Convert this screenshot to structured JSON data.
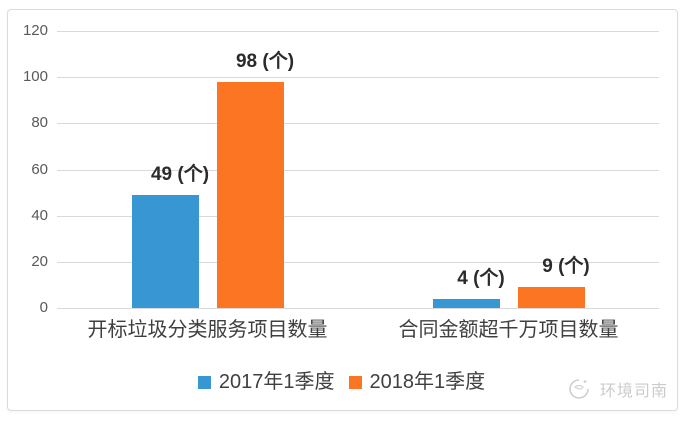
{
  "chart_data": {
    "type": "bar",
    "title": "",
    "xlabel": "",
    "ylabel": "",
    "categories": [
      "开标垃圾分类服务项目数量",
      "合同金额超千万项目数量"
    ],
    "series": [
      {
        "name": "2017年1季度",
        "color": "#3897d2",
        "values": [
          49,
          4
        ],
        "data_labels": [
          "49 (个)",
          "4 (个)"
        ]
      },
      {
        "name": "2018年1季度",
        "color": "#fb7522",
        "values": [
          98,
          9
        ],
        "data_labels": [
          "98 (个)",
          "9 (个)"
        ]
      }
    ],
    "unit": "个",
    "ylim": [
      0,
      120
    ],
    "yticks": [
      0,
      20,
      40,
      60,
      80,
      100,
      120
    ],
    "grid": true,
    "legend_position": "bottom-center"
  },
  "watermark": {
    "text": "环境司南",
    "icon": "compass-logo-icon"
  },
  "colors": {
    "series_2017": "#3897d2",
    "series_2018": "#fb7522",
    "gridline": "#d9d9d9",
    "axis_text": "#595959",
    "data_label_text": "#2b2b2b",
    "category_text": "#3f3f3f",
    "legend_text": "#404040",
    "watermark_text": "#cbcbcb",
    "frame_border": "#dbdbdb",
    "background": "#ffffff"
  }
}
